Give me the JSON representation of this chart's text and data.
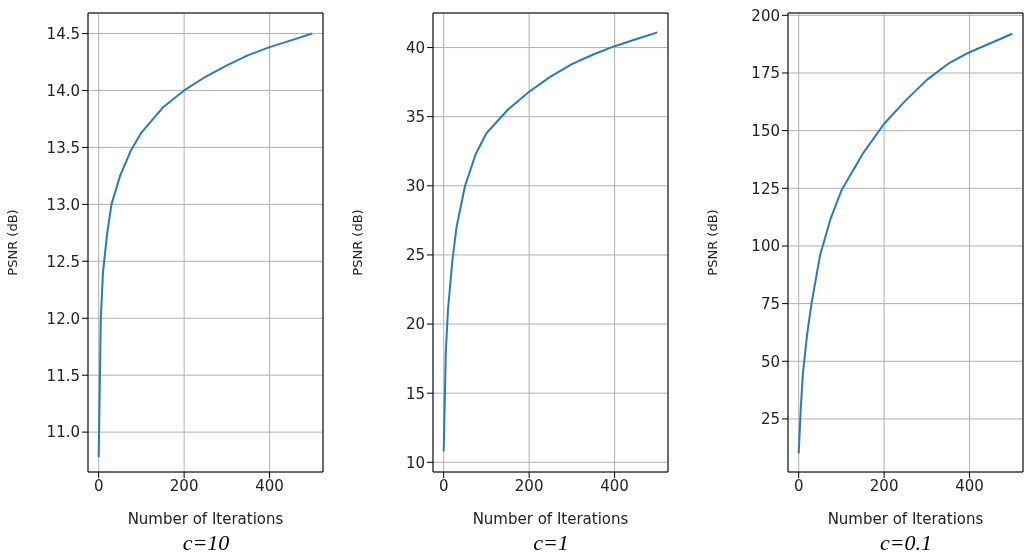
{
  "chart_data": [
    {
      "type": "line",
      "xlabel": "Number of Iterations",
      "ylabel": "PSNR (dB)",
      "annotations": [
        "c=10"
      ],
      "grid": true,
      "marker": "none",
      "line_style": "solid",
      "xlim": [
        -25,
        525
      ],
      "xticks": [
        0,
        200,
        400
      ],
      "ylim": [
        10.65,
        14.68
      ],
      "yticks": [
        {
          "value": 11,
          "label": "11.0"
        },
        11.5,
        {
          "value": 12,
          "label": "12.0"
        },
        12.5,
        {
          "value": 13,
          "label": "13.0"
        },
        13.5,
        {
          "value": 14,
          "label": "14.0"
        },
        14.5
      ],
      "x": [
        0,
        5,
        10,
        20,
        30,
        50,
        75,
        100,
        150,
        200,
        250,
        300,
        350,
        400,
        450,
        500
      ],
      "series": [
        {
          "color": "#2b7bba",
          "values": [
            10.78,
            12.0,
            12.4,
            12.75,
            13.0,
            13.25,
            13.47,
            13.63,
            13.85,
            14.0,
            14.12,
            14.22,
            14.31,
            14.38,
            14.44,
            14.5
          ]
        }
      ]
    },
    {
      "type": "line",
      "xlabel": "Number of Iterations",
      "ylabel": "PSNR (dB)",
      "annotations": [
        "c=1"
      ],
      "grid": true,
      "marker": "none",
      "line_style": "solid",
      "xlim": [
        -25,
        525
      ],
      "xticks": [
        0,
        200,
        400
      ],
      "ylim": [
        9.3,
        42.5
      ],
      "yticks": [
        10,
        15,
        20,
        25,
        30,
        35,
        40
      ],
      "x": [
        0,
        5,
        10,
        20,
        30,
        50,
        75,
        100,
        150,
        200,
        250,
        300,
        350,
        400,
        450,
        500
      ],
      "series": [
        {
          "color": "#2b7bba",
          "values": [
            10.8,
            18,
            21,
            24.5,
            27,
            30,
            32.3,
            33.8,
            35.5,
            36.8,
            37.9,
            38.8,
            39.5,
            40.1,
            40.6,
            41.1
          ]
        }
      ]
    },
    {
      "type": "line",
      "xlabel": "Number of Iterations",
      "ylabel": "PSNR (dB)",
      "annotations": [
        "c=0.1"
      ],
      "grid": true,
      "marker": "none",
      "line_style": "solid",
      "xlim": [
        -25,
        525
      ],
      "xticks": [
        0,
        200,
        400
      ],
      "ylim": [
        2,
        201
      ],
      "yticks": [
        25,
        50,
        75,
        100,
        125,
        150,
        175,
        200
      ],
      "x": [
        0,
        5,
        10,
        20,
        30,
        50,
        75,
        100,
        150,
        200,
        250,
        300,
        350,
        400,
        450,
        500
      ],
      "series": [
        {
          "color": "#2b7bba",
          "values": [
            10,
            30,
            45,
            62,
            75,
            96,
            112,
            124,
            140,
            153,
            163,
            172,
            179,
            184,
            188,
            192
          ]
        }
      ]
    }
  ]
}
